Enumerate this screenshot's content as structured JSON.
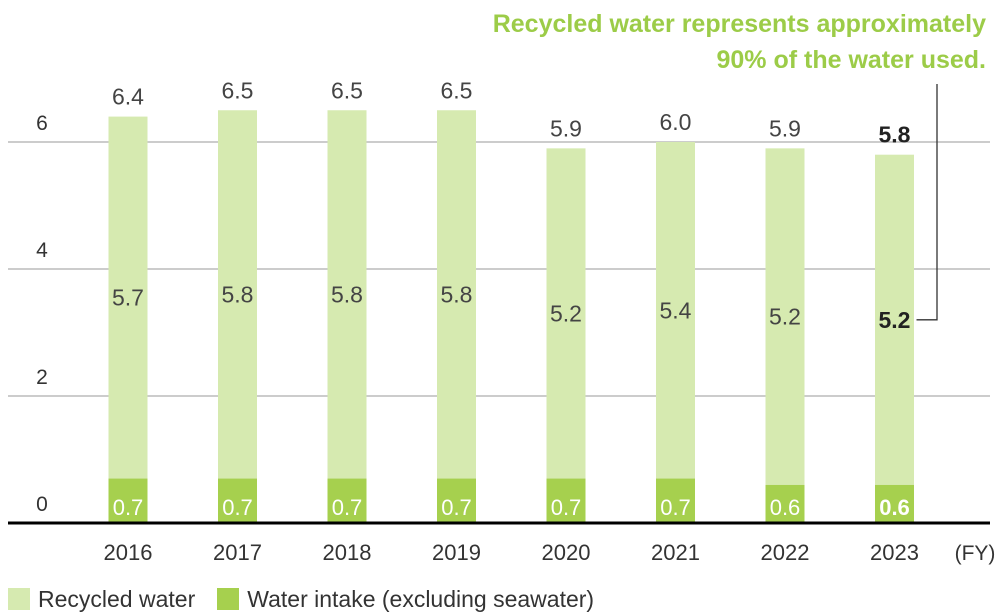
{
  "chart_data": {
    "type": "bar",
    "stacked": true,
    "categories": [
      "2016",
      "2017",
      "2018",
      "2019",
      "2020",
      "2021",
      "2022",
      "2023"
    ],
    "x_unit_label": "(FY)",
    "yticks": [
      "0",
      "2",
      "4",
      "6"
    ],
    "ylim": [
      0,
      7
    ],
    "series": [
      {
        "name": "Water intake (excluding seawater)",
        "color": "#a6d04e",
        "values": [
          0.7,
          0.7,
          0.7,
          0.7,
          0.7,
          0.7,
          0.6,
          0.6
        ],
        "labels": [
          "0.7",
          "0.7",
          "0.7",
          "0.7",
          "0.7",
          "0.7",
          "0.6",
          "0.6"
        ]
      },
      {
        "name": "Recycled water",
        "color": "#d6eab0",
        "values": [
          5.7,
          5.8,
          5.8,
          5.8,
          5.2,
          5.4,
          5.2,
          5.2
        ],
        "labels": [
          "5.7",
          "5.8",
          "5.8",
          "5.8",
          "5.2",
          "5.4",
          "5.2",
          "5.2"
        ]
      }
    ],
    "totals": [
      6.4,
      6.5,
      6.5,
      6.5,
      5.9,
      6.0,
      5.9,
      5.8
    ],
    "total_labels": [
      "6.4",
      "6.5",
      "6.5",
      "6.5",
      "5.9",
      "6.0",
      "5.9",
      "5.8"
    ],
    "highlight_category": "2023",
    "annotation": {
      "lines": [
        "Recycled water represents approximately",
        "90% of the water used."
      ],
      "color": "#9ccc48"
    },
    "legend": [
      {
        "label": "Recycled water",
        "color": "#d6eab0"
      },
      {
        "label": "Water intake (excluding seawater)",
        "color": "#a6d04e"
      }
    ]
  }
}
